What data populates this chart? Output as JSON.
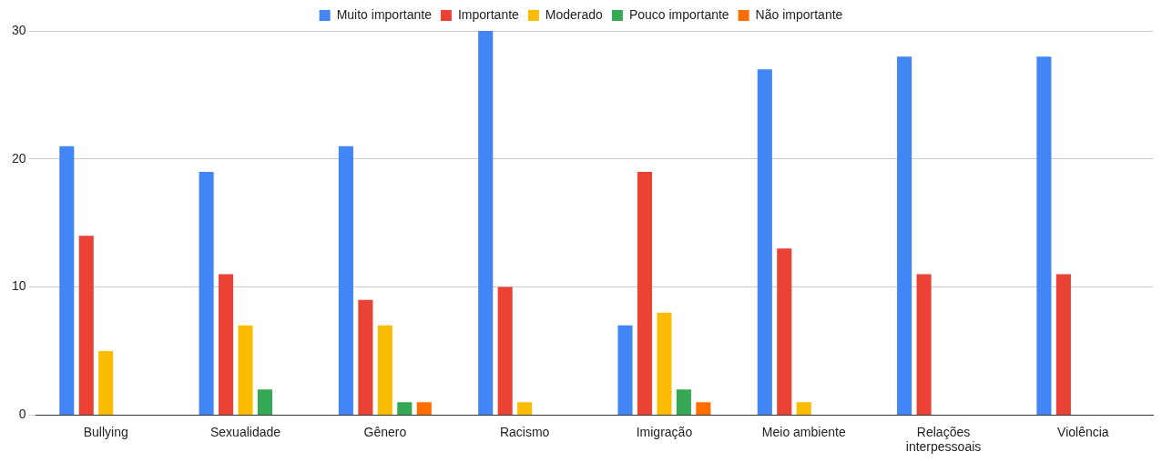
{
  "chart_data": {
    "type": "bar",
    "categories": [
      "Bullying",
      "Sexualidade",
      "Gênero",
      "Racismo",
      "Imigração",
      "Meio ambiente",
      "Relações interpessoais",
      "Violência"
    ],
    "series": [
      {
        "name": "Muito importante",
        "color": "#4285f4",
        "values": [
          21,
          19,
          21,
          30,
          7,
          27,
          28,
          28
        ]
      },
      {
        "name": "Importante",
        "color": "#ea4335",
        "values": [
          14,
          11,
          9,
          10,
          19,
          13,
          11,
          11
        ]
      },
      {
        "name": "Moderado",
        "color": "#fbbc04",
        "values": [
          5,
          7,
          7,
          1,
          8,
          1,
          0,
          0
        ]
      },
      {
        "name": "Pouco importante",
        "color": "#34a853",
        "values": [
          0,
          2,
          1,
          0,
          2,
          0,
          0,
          0
        ]
      },
      {
        "name": "Não importante",
        "color": "#ff6d01",
        "values": [
          0,
          0,
          1,
          0,
          1,
          0,
          0,
          0
        ]
      }
    ],
    "ylim": [
      0,
      30
    ],
    "yticks": [
      0,
      10,
      20,
      30
    ],
    "grid": "y",
    "legend": "top"
  }
}
